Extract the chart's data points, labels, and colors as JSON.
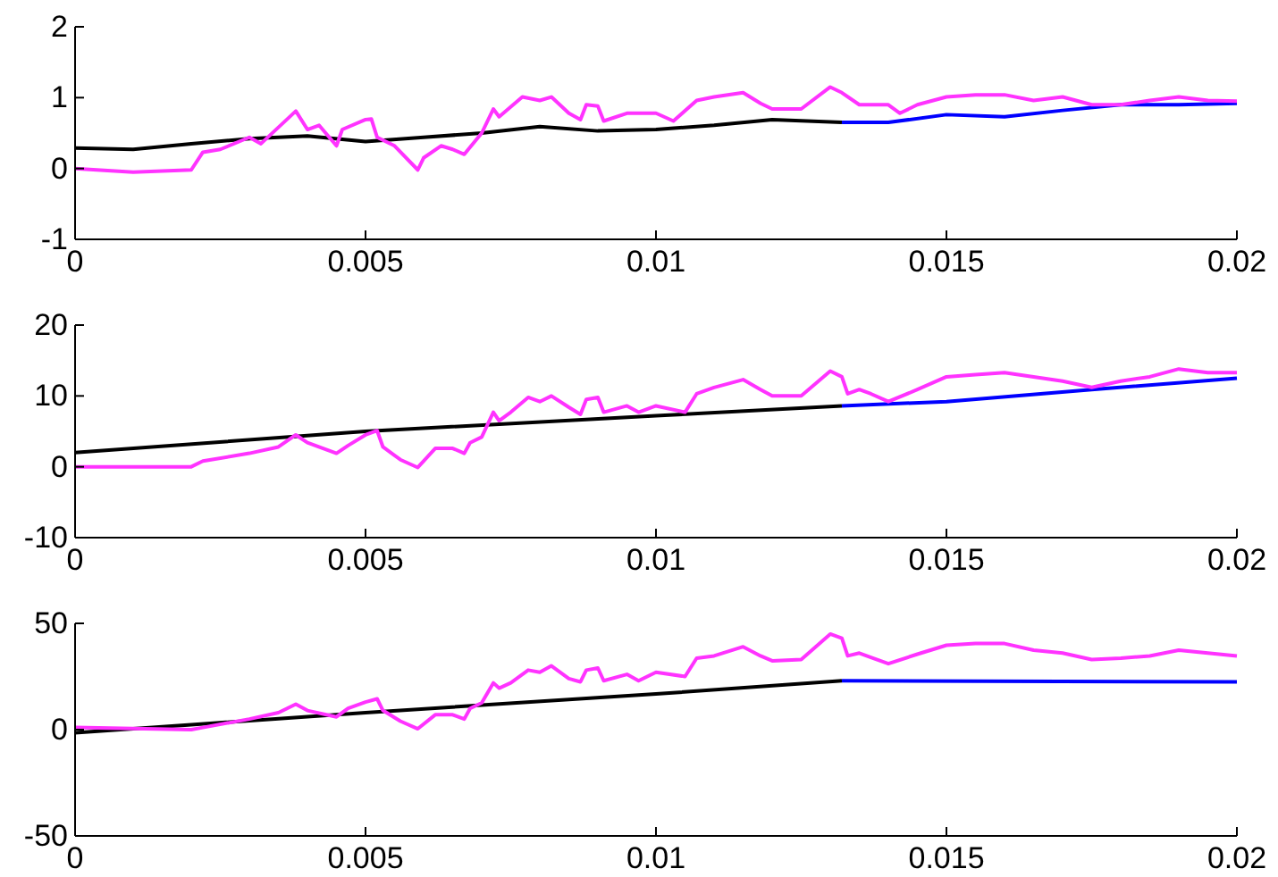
{
  "chart_data": [
    {
      "type": "line",
      "xlim": [
        0,
        0.02
      ],
      "xticks": [
        0,
        0.005,
        0.01,
        0.015,
        0.02
      ],
      "ylim": [
        -1,
        2
      ],
      "yticks": [
        -1,
        0,
        1,
        2
      ],
      "series": [
        {
          "color": "#000000",
          "x": [
            0,
            0.001,
            0.002,
            0.003,
            0.004,
            0.005,
            0.006,
            0.007,
            0.008,
            0.009,
            0.01,
            0.011,
            0.012,
            0.0132
          ],
          "values": [
            0.29,
            0.27,
            0.35,
            0.42,
            0.46,
            0.38,
            0.44,
            0.5,
            0.59,
            0.53,
            0.55,
            0.61,
            0.69,
            0.65
          ]
        },
        {
          "color": "#0000ff",
          "x": [
            0.0132,
            0.014,
            0.015,
            0.016,
            0.017,
            0.018,
            0.019,
            0.02
          ],
          "values": [
            0.65,
            0.65,
            0.76,
            0.73,
            0.82,
            0.9,
            0.9,
            0.92
          ]
        },
        {
          "color": "#ff33ff",
          "x": [
            0,
            0.001,
            0.002,
            0.0022,
            0.0025,
            0.003,
            0.0032,
            0.0035,
            0.0038,
            0.004,
            0.0042,
            0.0045,
            0.0046,
            0.005,
            0.0051,
            0.0052,
            0.0055,
            0.0059,
            0.006,
            0.0063,
            0.0065,
            0.0067,
            0.007,
            0.0072,
            0.0073,
            0.0077,
            0.008,
            0.0082,
            0.0085,
            0.0087,
            0.0088,
            0.009,
            0.0091,
            0.0095,
            0.01,
            0.0103,
            0.0107,
            0.011,
            0.0115,
            0.0118,
            0.012,
            0.0125,
            0.013,
            0.0132,
            0.0135,
            0.014,
            0.0142,
            0.0145,
            0.015,
            0.0155,
            0.016,
            0.0165,
            0.017,
            0.0175,
            0.018,
            0.0185,
            0.019,
            0.0195,
            0.02
          ],
          "values": [
            0,
            -0.05,
            -0.02,
            0.23,
            0.27,
            0.44,
            0.35,
            0.58,
            0.81,
            0.55,
            0.61,
            0.32,
            0.55,
            0.69,
            0.7,
            0.44,
            0.32,
            -0.02,
            0.15,
            0.32,
            0.27,
            0.2,
            0.5,
            0.84,
            0.73,
            1.01,
            0.96,
            1.01,
            0.78,
            0.69,
            0.9,
            0.88,
            0.67,
            0.78,
            0.78,
            0.67,
            0.96,
            1.01,
            1.07,
            0.92,
            0.84,
            0.84,
            1.15,
            1.07,
            0.9,
            0.9,
            0.78,
            0.9,
            1.01,
            1.04,
            1.04,
            0.96,
            1.01,
            0.9,
            0.9,
            0.96,
            1.01,
            0.96,
            0.95
          ]
        }
      ]
    },
    {
      "type": "line",
      "xlim": [
        0,
        0.02
      ],
      "xticks": [
        0,
        0.005,
        0.01,
        0.015,
        0.02
      ],
      "ylim": [
        -10,
        20
      ],
      "yticks": [
        -10,
        0,
        10,
        20
      ],
      "series": [
        {
          "color": "#000000",
          "x": [
            0,
            0.005,
            0.01,
            0.0132
          ],
          "values": [
            2,
            5,
            7.2,
            8.6
          ]
        },
        {
          "color": "#0000ff",
          "x": [
            0.0132,
            0.015,
            0.0175,
            0.02
          ],
          "values": [
            8.6,
            9.2,
            10.9,
            12.5
          ]
        },
        {
          "color": "#ff33ff",
          "x": [
            0,
            0.001,
            0.002,
            0.0022,
            0.003,
            0.0035,
            0.0038,
            0.004,
            0.0045,
            0.0047,
            0.005,
            0.0052,
            0.0053,
            0.0056,
            0.0059,
            0.0062,
            0.0065,
            0.0067,
            0.0068,
            0.007,
            0.0072,
            0.0073,
            0.0075,
            0.0078,
            0.008,
            0.0082,
            0.0085,
            0.0087,
            0.0088,
            0.009,
            0.0091,
            0.0095,
            0.0097,
            0.01,
            0.0105,
            0.0107,
            0.011,
            0.0115,
            0.0118,
            0.012,
            0.0125,
            0.013,
            0.0132,
            0.0133,
            0.0135,
            0.0137,
            0.014,
            0.0145,
            0.015,
            0.0155,
            0.016,
            0.0165,
            0.017,
            0.0175,
            0.018,
            0.0185,
            0.019,
            0.0195,
            0.02
          ],
          "values": [
            0,
            0,
            0,
            0.8,
            1.9,
            2.8,
            4.5,
            3.4,
            1.9,
            3,
            4.5,
            5.1,
            2.8,
            1,
            -0.1,
            2.6,
            2.6,
            1.9,
            3.4,
            4.2,
            7.7,
            6.5,
            7.7,
            9.8,
            9.2,
            10,
            8.4,
            7.4,
            9.5,
            9.8,
            7.7,
            8.6,
            7.7,
            8.6,
            7.7,
            10.3,
            11.2,
            12.3,
            10.9,
            10,
            10,
            13.5,
            12.7,
            10.3,
            10.9,
            10.3,
            9.2,
            10.9,
            12.7,
            13,
            13.3,
            12.7,
            12.1,
            11.2,
            12.1,
            12.7,
            13.8,
            13.3,
            13.3
          ]
        }
      ]
    },
    {
      "type": "line",
      "xlim": [
        0,
        0.02
      ],
      "xticks": [
        0,
        0.005,
        0.01,
        0.015,
        0.02
      ],
      "ylim": [
        -50,
        50
      ],
      "yticks": [
        -50,
        0,
        50
      ],
      "series": [
        {
          "color": "#000000",
          "x": [
            0,
            0.002,
            0.005,
            0.01,
            0.0132
          ],
          "values": [
            -1.5,
            2.3,
            8,
            16.8,
            23
          ]
        },
        {
          "color": "#0000ff",
          "x": [
            0.0132,
            0.02
          ],
          "values": [
            23,
            22.5
          ]
        },
        {
          "color": "#ff33ff",
          "x": [
            0,
            0.001,
            0.002,
            0.0022,
            0.003,
            0.0035,
            0.0038,
            0.004,
            0.0045,
            0.0047,
            0.005,
            0.0052,
            0.0053,
            0.0056,
            0.0059,
            0.0062,
            0.0065,
            0.0067,
            0.0068,
            0.007,
            0.0072,
            0.0073,
            0.0075,
            0.0078,
            0.008,
            0.0082,
            0.0085,
            0.0087,
            0.0088,
            0.009,
            0.0091,
            0.0095,
            0.0097,
            0.01,
            0.0105,
            0.0107,
            0.011,
            0.0115,
            0.0118,
            0.012,
            0.0125,
            0.013,
            0.0132,
            0.0133,
            0.0135,
            0.0137,
            0.014,
            0.0145,
            0.015,
            0.0155,
            0.016,
            0.0165,
            0.017,
            0.0175,
            0.018,
            0.0185,
            0.019,
            0.0195,
            0.02
          ],
          "values": [
            1,
            0.5,
            0,
            1,
            5,
            8,
            12,
            9,
            6,
            10,
            13,
            14.5,
            9,
            4,
            0.4,
            7,
            7,
            5,
            10,
            12.6,
            22,
            19.5,
            22,
            28,
            27,
            30,
            24,
            22.5,
            28,
            29,
            23,
            26,
            23,
            27,
            25,
            33.6,
            34.7,
            39,
            34.7,
            32.4,
            33,
            45,
            43,
            34.7,
            36,
            34,
            31,
            35.5,
            39.7,
            40.5,
            40.5,
            37.4,
            36,
            33,
            33.6,
            34.7,
            37.4,
            36,
            34.7
          ]
        }
      ]
    }
  ]
}
